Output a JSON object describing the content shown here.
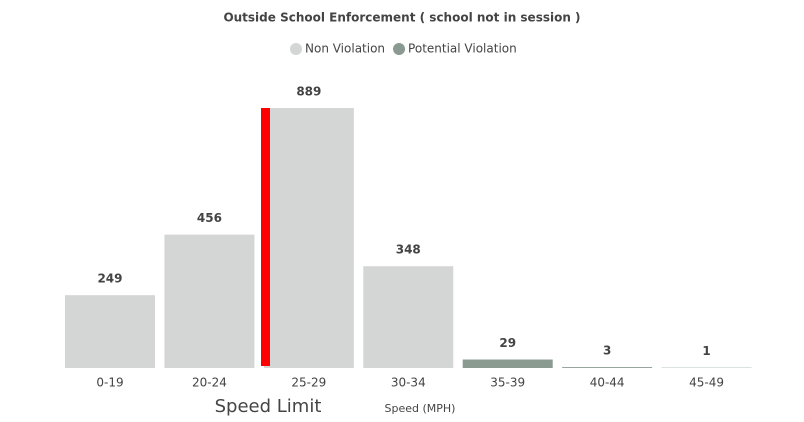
{
  "chart_data": {
    "type": "bar",
    "title": "Outside School Enforcement ( school not in session )",
    "categories": [
      "0-19",
      "20-24",
      "25-29",
      "30-34",
      "35-39",
      "40-44",
      "45-49"
    ],
    "series": [
      {
        "name": "Non Violation",
        "color": "#d3d6d4",
        "values": [
          249,
          456,
          889,
          348,
          null,
          null,
          null
        ]
      },
      {
        "name": "Potential Violation",
        "color": "#8a9a90",
        "values": [
          null,
          null,
          null,
          null,
          29,
          3,
          1
        ]
      }
    ],
    "x_label": "Speed (MPH)",
    "annotation": {
      "text": "Speed Limit",
      "color": "#ff0000"
    },
    "legend": "top"
  }
}
